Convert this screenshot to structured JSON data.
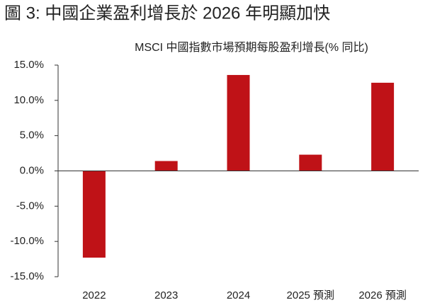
{
  "chart_data": {
    "type": "bar",
    "title": "圖 3: 中國企業盈利增長於 2026 年明顯加快",
    "subtitle": "MSCI 中國指數市場預期每股盈利增長(% 同比)",
    "categories": [
      "2022",
      "2023",
      "2024",
      "2025 預測",
      "2026 預測"
    ],
    "values": [
      -12.3,
      1.4,
      13.6,
      2.3,
      12.5
    ],
    "color": "#bf1217",
    "ylim": [
      -15,
      15
    ],
    "yticks": [
      {
        "value": -15,
        "label": "-15.0%"
      },
      {
        "value": -10,
        "label": "-10.0%"
      },
      {
        "value": -5,
        "label": "-5.0%"
      },
      {
        "value": 0,
        "label": "0.0%"
      },
      {
        "value": 5,
        "label": "5.0%"
      },
      {
        "value": 10,
        "label": "10.0%"
      },
      {
        "value": 15,
        "label": "15.0%"
      }
    ],
    "grid": false
  }
}
